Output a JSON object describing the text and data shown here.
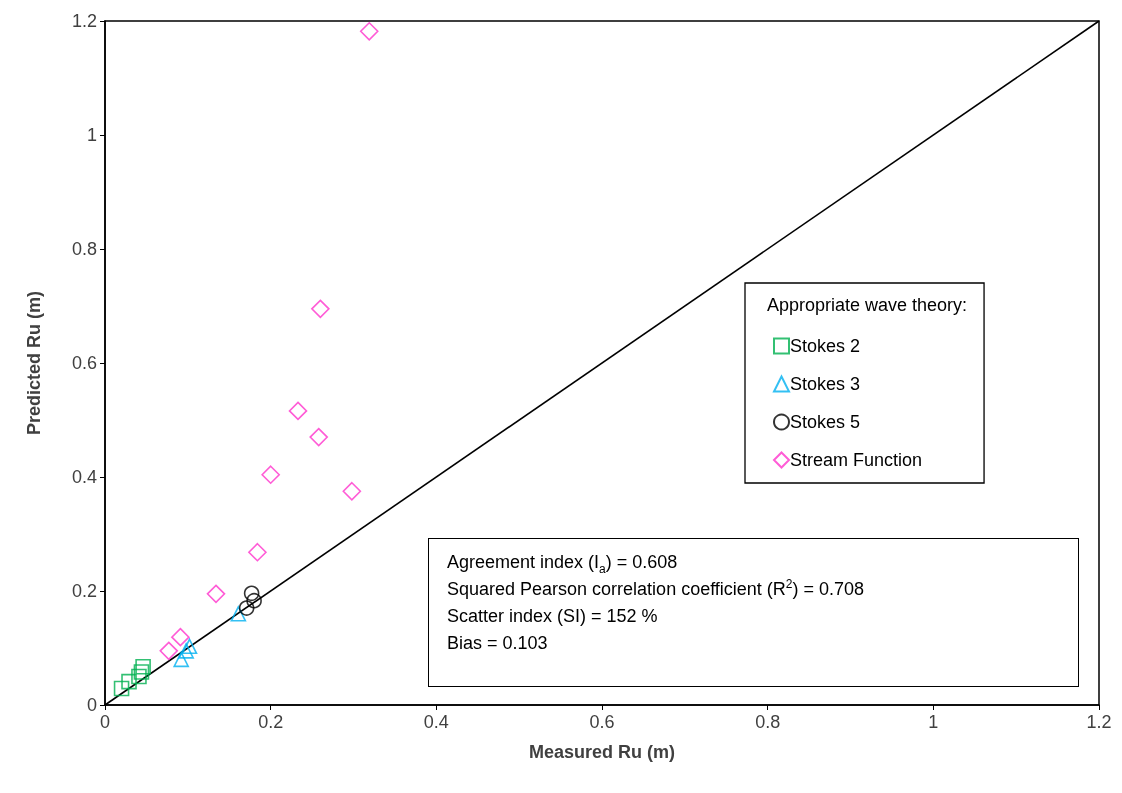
{
  "chart_data": {
    "type": "scatter",
    "xlabel": "Measured Ru (m)",
    "ylabel": "Predicted Ru (m)",
    "legend_title": "Appropriate wave theory:",
    "legend": "right",
    "grid": false,
    "xlim": [
      0,
      1.2
    ],
    "xticks": [
      0,
      0.2,
      0.4,
      0.6,
      0.8,
      1,
      1.2
    ],
    "ylim": [
      0,
      1.2
    ],
    "yticks": [
      0,
      0.2,
      0.4,
      0.6,
      0.8,
      1,
      1.2
    ],
    "series": [
      {
        "name": "Stokes 2",
        "color": "#00b050",
        "marker": "square",
        "x": [
          0.046,
          0.044,
          0.041,
          0.029,
          0.02
        ],
        "values": [
          0.067,
          0.058,
          0.05,
          0.041,
          0.029
        ]
      },
      {
        "name": "Stokes 3",
        "color": "#00b0f0",
        "marker": "triangle",
        "x": [
          0.161,
          0.102,
          0.098,
          0.092
        ],
        "values": [
          0.16,
          0.103,
          0.095,
          0.08
        ]
      },
      {
        "name": "Stokes 5",
        "color": "#000000",
        "marker": "circle",
        "x": [
          0.177,
          0.18,
          0.171
        ],
        "values": [
          0.196,
          0.183,
          0.17
        ]
      },
      {
        "name": "Stream Function",
        "color": "#ff33cc",
        "marker": "diamond",
        "x": [
          0.319,
          0.26,
          0.233,
          0.258,
          0.2,
          0.298,
          0.184,
          0.134,
          0.091,
          0.077
        ],
        "values": [
          1.182,
          0.695,
          0.516,
          0.47,
          0.404,
          0.375,
          0.268,
          0.195,
          0.119,
          0.095
        ]
      },
      {
        "type": "line",
        "color": "#000000",
        "marker": "none",
        "x": [
          0,
          1.2
        ],
        "values": [
          0,
          1.2
        ]
      }
    ],
    "annotations": [
      "Agreement index (I$_{a}$) = 0.608",
      "Squared Pearson correlation coefficient (R$^{2}$) = 0.708",
      "Scatter index (SI) = 152 %",
      "Bias = 0.103"
    ]
  }
}
